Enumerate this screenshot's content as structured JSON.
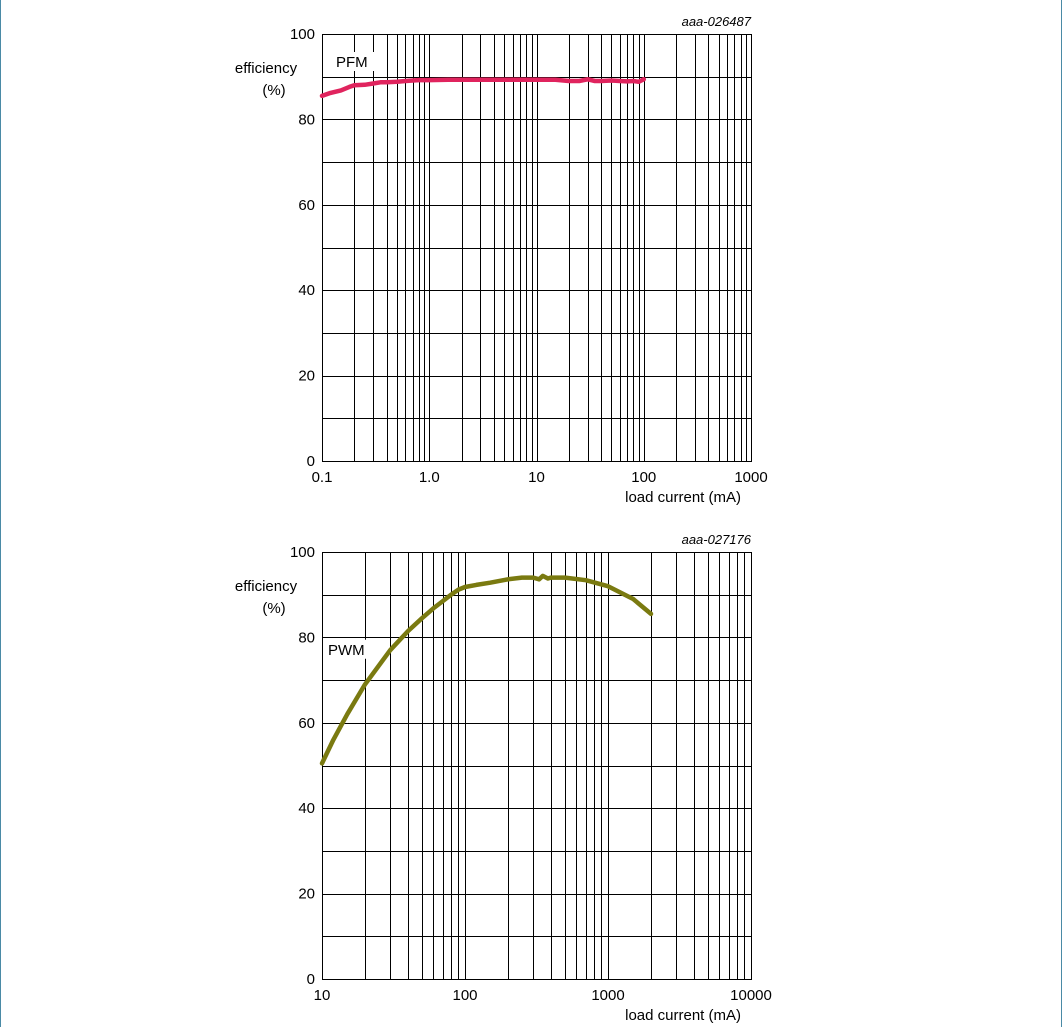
{
  "chart_data": [
    {
      "type": "line",
      "code": "aaа-026487",
      "ylabel": "efficiency\n(%)",
      "xlabel": "load current (mA)",
      "x_scale": "log",
      "xlim": [
        0.1,
        1000
      ],
      "ylim": [
        0,
        100
      ],
      "xtick_labels": [
        "0.1",
        "1.0",
        "10",
        "100",
        "1000"
      ],
      "xtick_values": [
        0.1,
        1,
        10,
        100,
        1000
      ],
      "ytick_labels": [
        "0",
        "20",
        "40",
        "60",
        "80",
        "100"
      ],
      "ytick_values": [
        0,
        20,
        40,
        60,
        80,
        100
      ],
      "grid": true,
      "series": [
        {
          "name": "PFM",
          "color": "#e0245e",
          "x": [
            0.1,
            0.12,
            0.15,
            0.18,
            0.2,
            0.25,
            0.3,
            0.35,
            0.4,
            0.5,
            0.6,
            0.7,
            0.8,
            0.9,
            1.0,
            1.5,
            2,
            3,
            5,
            7,
            10,
            15,
            20,
            25,
            30,
            35,
            40,
            50,
            60,
            70,
            80,
            90,
            100
          ],
          "y": [
            85.5,
            86.2,
            86.8,
            87.6,
            88.0,
            88.1,
            88.4,
            88.7,
            88.7,
            88.8,
            89.0,
            89.1,
            89.2,
            89.2,
            89.2,
            89.3,
            89.3,
            89.3,
            89.3,
            89.3,
            89.3,
            89.3,
            89.0,
            89.0,
            89.4,
            89.0,
            89.0,
            89.1,
            89.0,
            88.9,
            89.0,
            88.8,
            89.4
          ]
        }
      ]
    },
    {
      "type": "line",
      "code": "aaa-027176",
      "ylabel": "efficiency\n(%)",
      "xlabel": "load current (mA)",
      "x_scale": "log",
      "xlim": [
        10,
        10000
      ],
      "ylim": [
        0,
        100
      ],
      "xtick_labels": [
        "10",
        "100",
        "1000",
        "10000"
      ],
      "xtick_values": [
        10,
        100,
        1000,
        10000
      ],
      "ytick_labels": [
        "0",
        "20",
        "40",
        "60",
        "80",
        "100"
      ],
      "ytick_values": [
        0,
        20,
        40,
        60,
        80,
        100
      ],
      "grid": true,
      "series": [
        {
          "name": "PWM",
          "color": "#7a7a10",
          "x": [
            10,
            12,
            15,
            20,
            30,
            40,
            50,
            60,
            70,
            80,
            90,
            100,
            120,
            150,
            200,
            250,
            300,
            330,
            350,
            380,
            400,
            500,
            700,
            1000,
            1500,
            2000
          ],
          "y": [
            50.5,
            56,
            62,
            69,
            77,
            81.5,
            84.5,
            86.8,
            88.5,
            90.0,
            91.2,
            91.8,
            92.3,
            92.8,
            93.6,
            94.0,
            94.0,
            93.6,
            94.4,
            93.8,
            94.0,
            94.0,
            93.4,
            92.0,
            89.0,
            85.5
          ]
        }
      ]
    }
  ]
}
